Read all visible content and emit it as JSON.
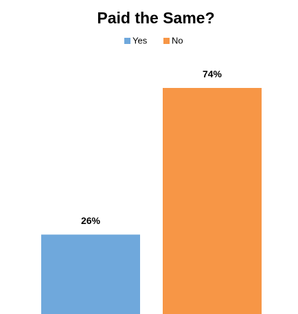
{
  "chart_data": {
    "type": "bar",
    "title": "Paid the Same?",
    "series": [
      {
        "name": "Yes",
        "color": "#6fa8dc",
        "values": [
          26
        ],
        "value_labels": [
          "26%"
        ]
      },
      {
        "name": "No",
        "color": "#f79646",
        "values": [
          74
        ],
        "value_labels": [
          "74%"
        ]
      }
    ],
    "legend": "top"
  }
}
